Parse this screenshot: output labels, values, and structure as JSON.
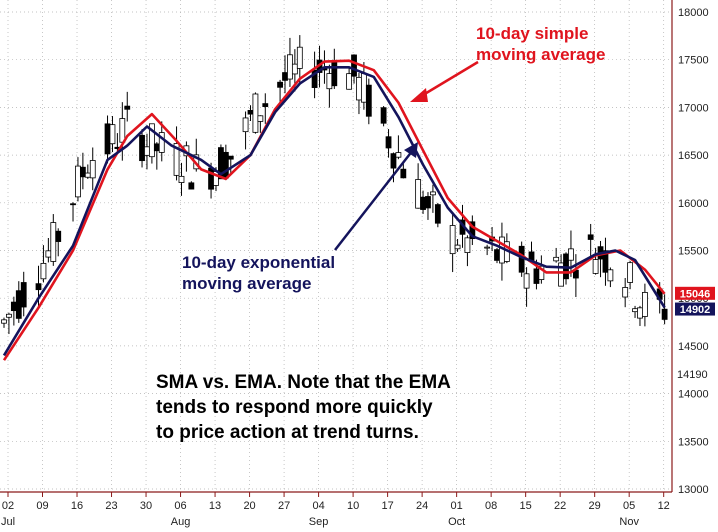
{
  "chart_data": {
    "type": "candlestick",
    "title": "",
    "xlabel": "",
    "ylabel": "",
    "ylim": [
      13000,
      18150
    ],
    "y_axis_position": "right",
    "y_ticks": [
      13000,
      13500,
      14000,
      14500,
      15000,
      15500,
      16000,
      16500,
      17000,
      17500,
      18000
    ],
    "x_ticks": [
      {
        "day": 2,
        "label": "02",
        "month": "Jul"
      },
      {
        "day": 9,
        "label": "09",
        "month": ""
      },
      {
        "day": 16,
        "label": "16",
        "month": ""
      },
      {
        "day": 23,
        "label": "23",
        "month": ""
      },
      {
        "day": 30,
        "label": "30",
        "month": ""
      },
      {
        "day": 37,
        "label": "06",
        "month": "Aug"
      },
      {
        "day": 44,
        "label": "13",
        "month": ""
      },
      {
        "day": 51,
        "label": "20",
        "month": ""
      },
      {
        "day": 58,
        "label": "27",
        "month": ""
      },
      {
        "day": 65,
        "label": "04",
        "month": "Sep"
      },
      {
        "day": 72,
        "label": "10",
        "month": ""
      },
      {
        "day": 79,
        "label": "17",
        "month": ""
      },
      {
        "day": 86,
        "label": "24",
        "month": ""
      },
      {
        "day": 93,
        "label": "01",
        "month": "Oct"
      },
      {
        "day": 100,
        "label": "08",
        "month": ""
      },
      {
        "day": 107,
        "label": "15",
        "month": ""
      },
      {
        "day": 114,
        "label": "22",
        "month": ""
      },
      {
        "day": 121,
        "label": "29",
        "month": ""
      },
      {
        "day": 128,
        "label": "05",
        "month": "Nov"
      },
      {
        "day": 135,
        "label": "12",
        "month": ""
      }
    ],
    "ohlc_x_unit": "trading days numbered from 02 Jul",
    "series": [
      {
        "name": "10-day simple moving average",
        "color": "#e0141e",
        "points": [
          [
            0,
            14350
          ],
          [
            7,
            14900
          ],
          [
            14,
            15500
          ],
          [
            21,
            16350
          ],
          [
            25,
            16700
          ],
          [
            30,
            16930
          ],
          [
            35,
            16650
          ],
          [
            40,
            16350
          ],
          [
            45,
            16250
          ],
          [
            50,
            16500
          ],
          [
            55,
            16980
          ],
          [
            60,
            17300
          ],
          [
            65,
            17480
          ],
          [
            70,
            17490
          ],
          [
            75,
            17390
          ],
          [
            80,
            17050
          ],
          [
            85,
            16550
          ],
          [
            90,
            16050
          ],
          [
            95,
            15750
          ],
          [
            100,
            15600
          ],
          [
            105,
            15450
          ],
          [
            110,
            15270
          ],
          [
            115,
            15270
          ],
          [
            120,
            15450
          ],
          [
            125,
            15500
          ],
          [
            130,
            15300
          ],
          [
            134,
            15046
          ]
        ]
      },
      {
        "name": "10-day exponential moving average",
        "color": "#14145c",
        "points": [
          [
            0,
            14400
          ],
          [
            7,
            15000
          ],
          [
            14,
            15550
          ],
          [
            21,
            16450
          ],
          [
            25,
            16600
          ],
          [
            29,
            16800
          ],
          [
            34,
            16600
          ],
          [
            40,
            16450
          ],
          [
            44,
            16300
          ],
          [
            50,
            16500
          ],
          [
            55,
            16950
          ],
          [
            60,
            17250
          ],
          [
            65,
            17420
          ],
          [
            70,
            17420
          ],
          [
            75,
            17320
          ],
          [
            80,
            16900
          ],
          [
            85,
            16400
          ],
          [
            90,
            15950
          ],
          [
            95,
            15650
          ],
          [
            100,
            15550
          ],
          [
            105,
            15430
          ],
          [
            110,
            15330
          ],
          [
            115,
            15320
          ],
          [
            120,
            15460
          ],
          [
            124,
            15500
          ],
          [
            128,
            15400
          ],
          [
            134,
            14902
          ]
        ]
      }
    ],
    "last_value_labels": [
      {
        "value": "15046",
        "color": "#e0141e"
      },
      {
        "value": "14902",
        "color": "#14145c"
      }
    ],
    "extra_axis_label": "14190",
    "annotations": [
      {
        "lines": [
          "10-day simple",
          "moving average"
        ],
        "color": "#e0141e"
      },
      {
        "lines": [
          "10-day exponential",
          "moving average"
        ],
        "color": "#14145c"
      },
      {
        "lines": [
          "SMA vs. EMA. Note that the EMA",
          "tends to respond more quickly",
          "to price action at trend turns."
        ],
        "color": "#000000"
      }
    ],
    "grid": "dotted"
  }
}
